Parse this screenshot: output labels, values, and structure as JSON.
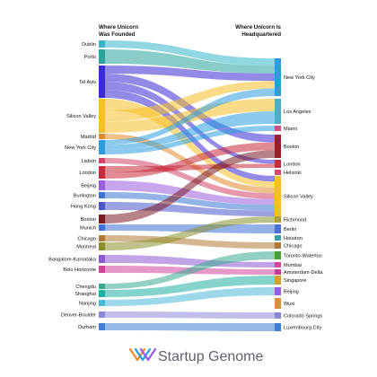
{
  "headers": {
    "left": [
      "Where Unicorn",
      "Was Founded"
    ],
    "right": [
      "Where Unicorn Is",
      "Headquartered"
    ]
  },
  "left_nodes": [
    {
      "label": "Dublin",
      "color": "#35b6c9"
    },
    {
      "label": "Porto",
      "color": "#2aa39a"
    },
    {
      "label": "Tel Aviv",
      "color": "#3b2ad6"
    },
    {
      "label": "Silicon Valley",
      "color": "#f6c026"
    },
    {
      "label": "Madrid",
      "color": "#e08a2c"
    },
    {
      "label": "New York City",
      "color": "#2c9ee0"
    },
    {
      "label": "Lisbon",
      "color": "#d24469"
    },
    {
      "label": "London",
      "color": "#c62b3d"
    },
    {
      "label": "Beijing",
      "color": "#9a5ce0"
    },
    {
      "label": "Burlington",
      "color": "#3d74d1"
    },
    {
      "label": "Hong Kong",
      "color": "#4a55c8"
    },
    {
      "label": "Boston",
      "color": "#7a1c24"
    },
    {
      "label": "Munich",
      "color": "#3d6fd6"
    },
    {
      "label": "Chicago",
      "color": "#b07a36"
    },
    {
      "label": "Montreal",
      "color": "#8a8f2c"
    },
    {
      "label": "Bangalore-Karnataka",
      "color": "#8c5ad0"
    },
    {
      "label": "Belo Horizonte",
      "color": "#d2459b"
    },
    {
      "label": "Chengdu",
      "color": "#36a98f"
    },
    {
      "label": "Shanghai",
      "color": "#20b0a0"
    },
    {
      "label": "Nanjing",
      "color": "#4ab8d8"
    },
    {
      "label": "Denver-Boulder",
      "color": "#8a8ad8"
    },
    {
      "label": "Durham",
      "color": "#3f7fd6"
    }
  ],
  "right_nodes": [
    {
      "label": "New York City",
      "color": "#2c9ee0"
    },
    {
      "label": "Los Angeles",
      "color": "#4ab0c8"
    },
    {
      "label": "Miami",
      "color": "#d24a8a"
    },
    {
      "label": "Boston",
      "color": "#9a1e2a"
    },
    {
      "label": "London",
      "color": "#c62b3d"
    },
    {
      "label": "Helsinki",
      "color": "#d64a6a"
    },
    {
      "label": "Silicon Valley",
      "color": "#f6c026"
    },
    {
      "label": "Richmond",
      "color": "#b0a030"
    },
    {
      "label": "Berlin",
      "color": "#4a6fd6"
    },
    {
      "label": "Houston",
      "color": "#3aa0a8"
    },
    {
      "label": "Chicago",
      "color": "#b07a36"
    },
    {
      "label": "Toronto-Waterloo",
      "color": "#4aa02c"
    },
    {
      "label": "Mumbai",
      "color": "#d2459b"
    },
    {
      "label": "Amsterdam-Delta",
      "color": "#c83a9a"
    },
    {
      "label": "Singapore",
      "color": "#d8a020"
    },
    {
      "label": "Beijing",
      "color": "#9a5ce0"
    },
    {
      "label": "Wuxi",
      "color": "#e08a3c"
    },
    {
      "label": "Colorado Springs",
      "color": "#8a8ad8"
    },
    {
      "label": "Luxembourg City",
      "color": "#3f7fd6"
    }
  ],
  "flows": [
    {
      "from": "Dublin",
      "to": "New York City"
    },
    {
      "from": "Porto",
      "to": "New York City"
    },
    {
      "from": "Tel Aviv",
      "to": "New York City"
    },
    {
      "from": "Tel Aviv",
      "to": "Boston"
    },
    {
      "from": "Tel Aviv",
      "to": "London"
    },
    {
      "from": "Tel Aviv",
      "to": "Silicon Valley"
    },
    {
      "from": "Silicon Valley",
      "to": "Silicon Valley"
    },
    {
      "from": "Silicon Valley",
      "to": "New York City"
    },
    {
      "from": "Silicon Valley",
      "to": "Los Angeles"
    },
    {
      "from": "Madrid",
      "to": "Silicon Valley"
    },
    {
      "from": "New York City",
      "to": "New York City"
    },
    {
      "from": "New York City",
      "to": "Los Angeles"
    },
    {
      "from": "New York City",
      "to": "Miami"
    },
    {
      "from": "Lisbon",
      "to": "Silicon Valley"
    },
    {
      "from": "London",
      "to": "London"
    },
    {
      "from": "London",
      "to": "Boston"
    },
    {
      "from": "Beijing",
      "to": "Silicon Valley"
    },
    {
      "from": "Burlington",
      "to": "Silicon Valley"
    },
    {
      "from": "Hong Kong",
      "to": "Silicon Valley"
    },
    {
      "from": "Boston",
      "to": "Boston"
    },
    {
      "from": "Munich",
      "to": "Berlin"
    },
    {
      "from": "Chicago",
      "to": "Chicago"
    },
    {
      "from": "Montreal",
      "to": "Richmond"
    },
    {
      "from": "Bangalore-Karnataka",
      "to": "Mumbai"
    },
    {
      "from": "Belo Horizonte",
      "to": "Amsterdam-Delta"
    },
    {
      "from": "Chengdu",
      "to": "Toronto-Waterloo"
    },
    {
      "from": "Shanghai",
      "to": "Singapore"
    },
    {
      "from": "Nanjing",
      "to": "Beijing"
    },
    {
      "from": "Denver-Boulder",
      "to": "Colorado Springs"
    },
    {
      "from": "Durham",
      "to": "Luxembourg City"
    }
  ],
  "brand": {
    "name": "Startup Genome",
    "logo_icon": "startup-genome-logo-icon"
  }
}
